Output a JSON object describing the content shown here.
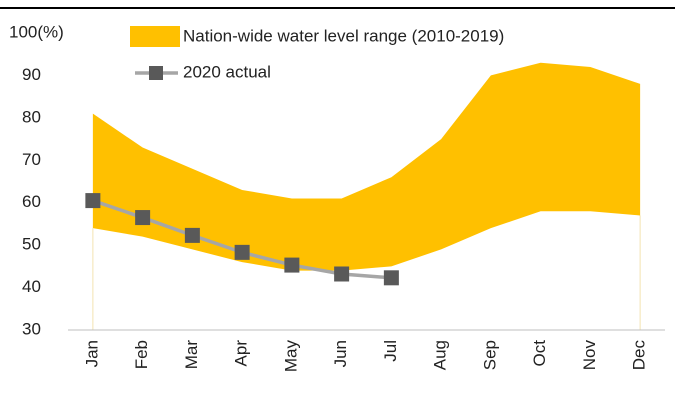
{
  "chart_data": {
    "type": "range-line",
    "categories": [
      "Jan",
      "Feb",
      "Mar",
      "Apr",
      "May",
      "Jun",
      "Jul",
      "Aug",
      "Sep",
      "Oct",
      "Nov",
      "Dec"
    ],
    "series": [
      {
        "name": "Nation-wide water level range (2010-2019)",
        "color": "#ffc000",
        "low": [
          54,
          52,
          49,
          46,
          44,
          44,
          45,
          49,
          54,
          58,
          58,
          57
        ],
        "high": [
          81,
          73,
          68,
          63,
          61,
          61,
          66,
          75,
          90,
          93,
          92,
          88
        ]
      },
      {
        "name": "2020 actual",
        "color": "#a6a6a6",
        "marker_color": "#595959",
        "values": [
          60.5,
          56.5,
          52.3,
          48.3,
          45.3,
          43.2,
          42.3,
          null,
          null,
          null,
          null,
          null
        ]
      }
    ],
    "ylim": [
      30,
      100
    ],
    "yticks": [
      30,
      40,
      50,
      60,
      70,
      80,
      90,
      {
        "value": 100,
        "label": "100(%)"
      }
    ]
  }
}
